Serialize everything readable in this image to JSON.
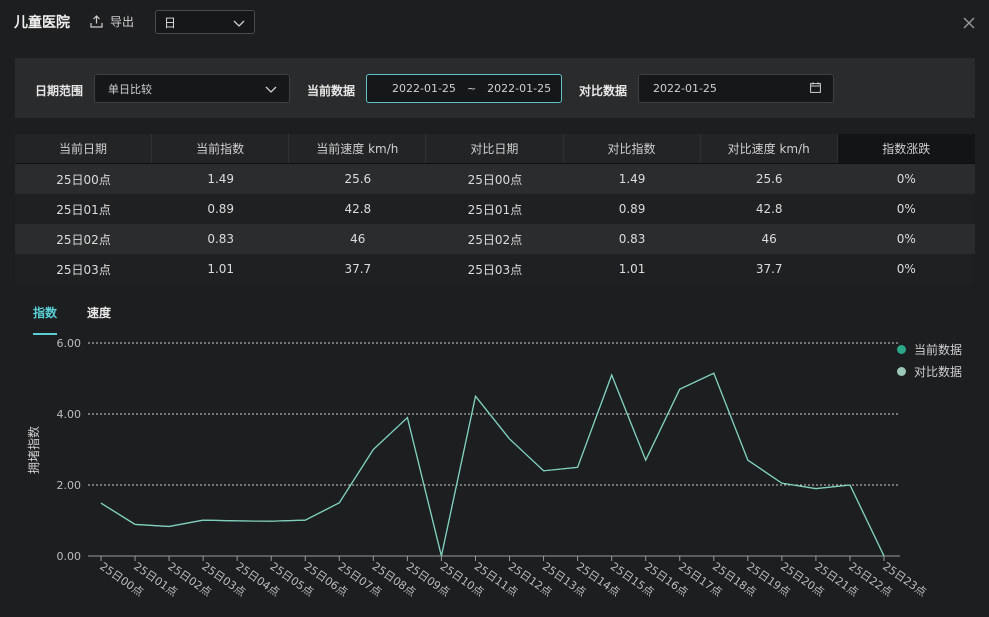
{
  "header": {
    "title": "儿童医院",
    "export_label": "导出",
    "period_value": "日"
  },
  "filter": {
    "range_label": "日期范围",
    "range_value": "单日比较",
    "current_label": "当前数据",
    "current_start": "2022-01-25",
    "range_separator": "~",
    "current_end": "2022-01-25",
    "compare_label": "对比数据",
    "compare_date": "2022-01-25"
  },
  "table": {
    "headers": [
      "当前日期",
      "当前指数",
      "当前速度 km/h",
      "对比日期",
      "对比指数",
      "对比速度 km/h",
      "指数涨跌"
    ],
    "rows": [
      [
        "25日00点",
        "1.49",
        "25.6",
        "25日00点",
        "1.49",
        "25.6",
        "0%"
      ],
      [
        "25日01点",
        "0.89",
        "42.8",
        "25日01点",
        "0.89",
        "42.8",
        "0%"
      ],
      [
        "25日02点",
        "0.83",
        "46",
        "25日02点",
        "0.83",
        "46",
        "0%"
      ],
      [
        "25日03点",
        "1.01",
        "37.7",
        "25日03点",
        "1.01",
        "37.7",
        "0%"
      ]
    ]
  },
  "tabs": [
    {
      "label": "指数",
      "active": true
    },
    {
      "label": "速度",
      "active": false
    }
  ],
  "colors": {
    "accent": "#5ad0d6",
    "current_series": "#2aa889",
    "compare_series": "#9bc8b8",
    "line": "#7fcfbd"
  },
  "chart_data": {
    "type": "line",
    "ylabel": "拥堵指数",
    "ylim": [
      0,
      6
    ],
    "yticks": [
      "0.00",
      "2.00",
      "4.00",
      "6.00"
    ],
    "grid": "dashed horizontal",
    "legend_position": "top-right",
    "categories": [
      "25日00点",
      "25日01点",
      "25日02点",
      "25日03点",
      "25日04点",
      "25日05点",
      "25日06点",
      "25日07点",
      "25日08点",
      "25日09点",
      "25日10点",
      "25日11点",
      "25日12点",
      "25日13点",
      "25日14点",
      "25日15点",
      "25日16点",
      "25日17点",
      "25日18点",
      "25日19点",
      "25日20点",
      "25日21点",
      "25日22点",
      "25日23点"
    ],
    "series": [
      {
        "name": "当前数据",
        "values": [
          1.49,
          0.89,
          0.83,
          1.01,
          0.99,
          0.98,
          1.01,
          1.5,
          3.0,
          3.9,
          0.0,
          4.5,
          3.3,
          2.4,
          2.5,
          5.1,
          2.7,
          4.7,
          5.15,
          2.7,
          2.05,
          1.9,
          2.0,
          0.0
        ]
      },
      {
        "name": "对比数据",
        "values": [
          1.49,
          0.89,
          0.83,
          1.01,
          0.99,
          0.98,
          1.01,
          1.5,
          3.0,
          3.9,
          0.0,
          4.5,
          3.3,
          2.4,
          2.5,
          5.1,
          2.7,
          4.7,
          5.15,
          2.7,
          2.05,
          1.9,
          2.0,
          0.0
        ]
      }
    ]
  }
}
